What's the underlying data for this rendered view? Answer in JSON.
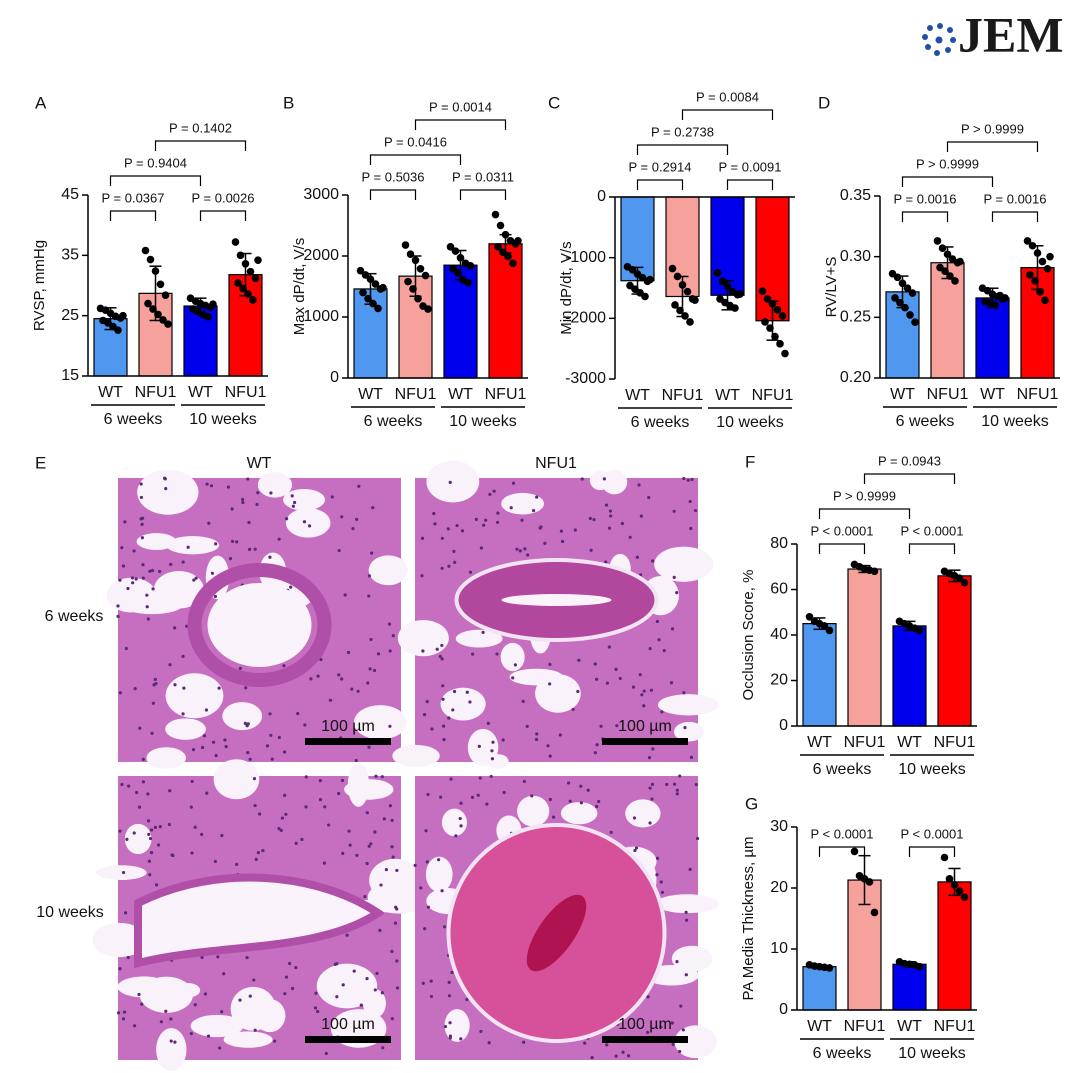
{
  "logo": "JEM",
  "histology": {
    "label": "E",
    "columns": [
      "WT",
      "NFU1"
    ],
    "rows": [
      "6 weeks",
      "10 weeks"
    ],
    "scale_bar": "100 µm"
  },
  "chart_data": [
    {
      "type": "bar",
      "label": "A",
      "ylabel": "RVSP, mmHg",
      "categories": [
        "WT",
        "NFU1",
        "WT",
        "NFU1"
      ],
      "groups": [
        "6 weeks",
        "10 weeks"
      ],
      "colors": [
        "#4f97ef",
        "#f7a19c",
        "#0000ee",
        "#ff0000"
      ],
      "values": [
        24.5,
        28.7,
        26.6,
        31.8
      ],
      "errors": [
        1.8,
        4.5,
        1.3,
        3.5
      ],
      "points": [
        [
          26.2,
          25.9,
          25.4,
          24.9,
          24.6,
          24.2,
          23.8,
          23.2,
          22.6,
          25.0
        ],
        [
          35.8,
          34.3,
          32.4,
          30.2,
          28.4,
          27.0,
          26.1,
          25.2,
          24.3,
          23.6
        ],
        [
          27.9,
          27.4,
          27.0,
          26.7,
          26.4,
          26.1,
          25.7,
          25.2,
          24.8,
          26.9
        ],
        [
          37.2,
          35.0,
          33.6,
          32.3,
          31.2,
          30.4,
          29.5,
          28.6,
          27.6,
          34.2
        ]
      ],
      "ylim": [
        15,
        45
      ],
      "yticks": [
        15,
        25,
        35,
        45
      ],
      "comparisons": [
        {
          "text": "P = 0.0367",
          "between": [
            0,
            1
          ]
        },
        {
          "text": "P = 0.0026",
          "between": [
            2,
            3
          ]
        },
        {
          "text": "P = 0.9404",
          "between": [
            0,
            2
          ]
        },
        {
          "text": "P = 0.1402",
          "between": [
            1,
            3
          ]
        }
      ]
    },
    {
      "type": "bar",
      "label": "B",
      "ylabel": "Max dP/dt, V/s",
      "categories": [
        "WT",
        "NFU1",
        "WT",
        "NFU1"
      ],
      "groups": [
        "6 weeks",
        "10 weeks"
      ],
      "colors": [
        "#4f97ef",
        "#f7a19c",
        "#0000ee",
        "#ff0000"
      ],
      "values": [
        1460,
        1670,
        1850,
        2200
      ],
      "errors": [
        250,
        330,
        240,
        150
      ],
      "points": [
        [
          1760,
          1690,
          1620,
          1540,
          1460,
          1400,
          1300,
          1220,
          1140,
          1480
        ],
        [
          2180,
          2030,
          1930,
          1790,
          1680,
          1580,
          1460,
          1300,
          1180,
          1130
        ],
        [
          2150,
          2080,
          1970,
          1880,
          1840,
          1790,
          1720,
          1610,
          1560
        ],
        [
          2680,
          2500,
          2350,
          2250,
          2200,
          2150,
          2060,
          1990,
          1880,
          2250
        ]
      ],
      "ylim": [
        0,
        3000
      ],
      "yticks": [
        0,
        1000,
        2000,
        3000
      ],
      "comparisons": [
        {
          "text": "P = 0.5036",
          "between": [
            0,
            1
          ]
        },
        {
          "text": "P = 0.0311",
          "between": [
            2,
            3
          ]
        },
        {
          "text": "P = 0.0416",
          "between": [
            0,
            2
          ]
        },
        {
          "text": "P = 0.0014",
          "between": [
            1,
            3
          ]
        }
      ]
    },
    {
      "type": "bar",
      "label": "C",
      "ylabel": "Min dP/dt, V/s",
      "categories": [
        "WT",
        "NFU1",
        "WT",
        "NFU1"
      ],
      "groups": [
        "6 weeks",
        "10 weeks"
      ],
      "colors": [
        "#4f97ef",
        "#f7a19c",
        "#0000ee",
        "#ff0000"
      ],
      "values": [
        -1380,
        -1640,
        -1620,
        -2040
      ],
      "errors": [
        220,
        330,
        240,
        320
      ],
      "points": [
        [
          -1150,
          -1200,
          -1270,
          -1330,
          -1390,
          -1460,
          -1520,
          -1580,
          -1640,
          -1360
        ],
        [
          -1180,
          -1310,
          -1450,
          -1560,
          -1680,
          -1780,
          -1870,
          -1960,
          -2060,
          -1700
        ],
        [
          -1250,
          -1390,
          -1470,
          -1560,
          -1610,
          -1680,
          -1740,
          -1790,
          -1830,
          -1600
        ],
        [
          -1550,
          -1680,
          -1760,
          -1860,
          -1960,
          -2060,
          -2160,
          -2300,
          -2420,
          -2580
        ]
      ],
      "ylim": [
        -3000,
        0
      ],
      "yticks": [
        -3000,
        -2000,
        -1000,
        0
      ],
      "comparisons": [
        {
          "text": "P = 0.2914",
          "between": [
            0,
            1
          ]
        },
        {
          "text": "P = 0.0091",
          "between": [
            2,
            3
          ]
        },
        {
          "text": "P = 0.2738",
          "between": [
            0,
            2
          ]
        },
        {
          "text": "P = 0.0084",
          "between": [
            1,
            3
          ]
        }
      ]
    },
    {
      "type": "bar",
      "label": "D",
      "ylabel": "RV/LV+S",
      "categories": [
        "WT",
        "NFU1",
        "WT",
        "NFU1"
      ],
      "groups": [
        "6 weeks",
        "10 weeks"
      ],
      "colors": [
        "#4f97ef",
        "#f7a19c",
        "#0000ee",
        "#ff0000"
      ],
      "values": [
        0.271,
        0.295,
        0.266,
        0.291
      ],
      "errors": [
        0.013,
        0.013,
        0.008,
        0.018
      ],
      "points": [
        [
          0.286,
          0.283,
          0.278,
          0.274,
          0.27,
          0.266,
          0.262,
          0.258,
          0.252,
          0.246
        ],
        [
          0.313,
          0.307,
          0.302,
          0.298,
          0.295,
          0.291,
          0.288,
          0.284,
          0.28,
          0.296
        ],
        [
          0.274,
          0.272,
          0.269,
          0.267,
          0.265,
          0.263,
          0.262,
          0.26,
          0.268,
          0.266
        ],
        [
          0.313,
          0.309,
          0.303,
          0.296,
          0.29,
          0.285,
          0.28,
          0.271,
          0.264,
          0.3
        ]
      ],
      "ylim": [
        0.2,
        0.35
      ],
      "yticks": [
        {
          "value": 0.2,
          "label": "0.20"
        },
        0.25,
        {
          "value": 0.3,
          "label": "0.30"
        },
        0.35
      ],
      "comparisons": [
        {
          "text": "P = 0.0016",
          "between": [
            0,
            1
          ]
        },
        {
          "text": "P = 0.0016",
          "between": [
            2,
            3
          ]
        },
        {
          "text": "P > 0.9999",
          "between": [
            0,
            2
          ]
        },
        {
          "text": "P > 0.9999",
          "between": [
            1,
            3
          ]
        }
      ]
    },
    {
      "type": "bar",
      "label": "F",
      "ylabel": "Occlusion Score, %",
      "categories": [
        "WT",
        "NFU1",
        "WT",
        "NFU1"
      ],
      "groups": [
        "6 weeks",
        "10 weeks"
      ],
      "colors": [
        "#4f97ef",
        "#f7a19c",
        "#0000ee",
        "#ff0000"
      ],
      "values": [
        45,
        69,
        44,
        66
      ],
      "errors": [
        2.5,
        1.5,
        2,
        2.5
      ],
      "points": [
        [
          48,
          46,
          45,
          44,
          42
        ],
        [
          71,
          70,
          69,
          68.5,
          68
        ],
        [
          46,
          45,
          44,
          43,
          42
        ],
        [
          68,
          67,
          66,
          65,
          63
        ]
      ],
      "ylim": [
        0,
        80
      ],
      "yticks": [
        0,
        20,
        40,
        60,
        80
      ],
      "comparisons": [
        {
          "text": "P < 0.0001",
          "between": [
            0,
            1
          ]
        },
        {
          "text": "P < 0.0001",
          "between": [
            2,
            3
          ]
        },
        {
          "text": "P > 0.9999",
          "between": [
            0,
            2
          ]
        },
        {
          "text": "P = 0.0943",
          "between": [
            1,
            3
          ]
        }
      ]
    },
    {
      "type": "bar",
      "label": "G",
      "ylabel": "PA Media Thickness, µm",
      "categories": [
        "WT",
        "NFU1",
        "WT",
        "NFU1"
      ],
      "groups": [
        "6 weeks",
        "10 weeks"
      ],
      "colors": [
        "#4f97ef",
        "#f7a19c",
        "#0000ee",
        "#ff0000"
      ],
      "values": [
        7.1,
        21.3,
        7.5,
        21
      ],
      "errors": [
        0.3,
        4,
        0.4,
        2.2
      ],
      "points": [
        [
          7.4,
          7.2,
          7.1,
          7.0,
          6.9
        ],
        [
          26,
          22,
          21.5,
          21,
          16
        ],
        [
          7.9,
          7.6,
          7.5,
          7.4,
          7.1
        ],
        [
          25,
          21.5,
          20.5,
          19.5,
          18.5
        ]
      ],
      "ylim": [
        0,
        30
      ],
      "yticks": [
        0,
        10,
        20,
        30
      ],
      "comparisons": [
        {
          "text": "P < 0.0001",
          "between": [
            0,
            1
          ]
        },
        {
          "text": "P < 0.0001",
          "between": [
            2,
            3
          ]
        }
      ]
    }
  ]
}
